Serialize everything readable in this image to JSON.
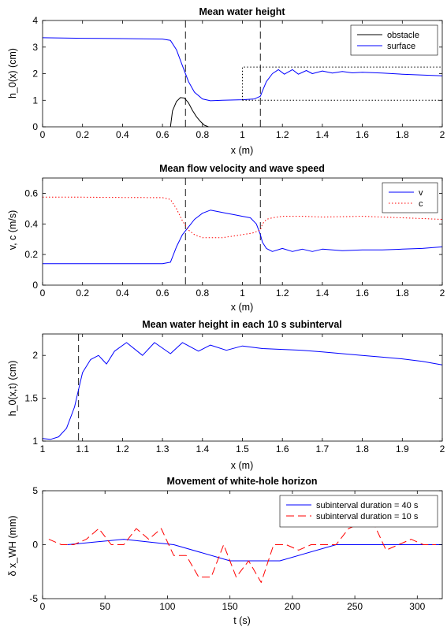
{
  "chart_data": [
    {
      "type": "line",
      "title": "Mean water height",
      "xlabel": "x (m)",
      "ylabel": "h_0(x) (cm)",
      "xlim": [
        0,
        2
      ],
      "ylim": [
        0,
        4
      ],
      "xticks": [
        "0",
        "0.2",
        "0.4",
        "0.6",
        "0.8",
        "1",
        "1.2",
        "1.4",
        "1.6",
        "1.8",
        "2"
      ],
      "yticks": [
        "0",
        "1",
        "2",
        "3",
        "4"
      ],
      "legend": "top-right",
      "vlines": [
        0.715,
        1.09
      ],
      "series": [
        {
          "name": "obstacle",
          "color": "#000000",
          "dash": "",
          "x": [
            0.64,
            0.65,
            0.67,
            0.69,
            0.71,
            0.73,
            0.75,
            0.77,
            0.79,
            0.81,
            0.83
          ],
          "y": [
            0,
            0.6,
            0.95,
            1.1,
            1.08,
            0.9,
            0.62,
            0.38,
            0.2,
            0.06,
            0
          ]
        },
        {
          "name": "surface",
          "color": "#0000ff",
          "dash": "",
          "x": [
            0,
            0.2,
            0.4,
            0.6,
            0.64,
            0.67,
            0.7,
            0.73,
            0.76,
            0.8,
            0.84,
            0.9,
            1.0,
            1.06,
            1.09,
            1.1,
            1.12,
            1.15,
            1.18,
            1.21,
            1.25,
            1.28,
            1.32,
            1.35,
            1.4,
            1.45,
            1.5,
            1.55,
            1.6,
            1.7,
            1.8,
            1.9,
            2.0
          ],
          "y": [
            3.35,
            3.33,
            3.32,
            3.3,
            3.25,
            2.9,
            2.3,
            1.7,
            1.3,
            1.05,
            0.98,
            1.0,
            1.02,
            1.05,
            1.15,
            1.35,
            1.7,
            2.0,
            2.15,
            1.98,
            2.15,
            1.98,
            2.12,
            2.0,
            2.1,
            2.02,
            2.08,
            2.03,
            2.05,
            2.02,
            1.98,
            1.95,
            1.92
          ]
        },
        {
          "name": "",
          "color": "#000000",
          "dash": "1.5,2.5",
          "x": [
            1.0,
            1.0,
            2.0
          ],
          "y": [
            1.0,
            2.25,
            2.25
          ]
        },
        {
          "name": "",
          "color": "#000000",
          "dash": "1.5,2.5",
          "x": [
            1.0,
            2.0
          ],
          "y": [
            1.0,
            1.0
          ]
        }
      ]
    },
    {
      "type": "line",
      "title": "Mean flow velocity and wave speed",
      "xlabel": "x (m)",
      "ylabel": "v, c (m/s)",
      "xlim": [
        0,
        2
      ],
      "ylim": [
        0,
        0.7
      ],
      "xticks": [
        "0",
        "0.2",
        "0.4",
        "0.6",
        "0.8",
        "1",
        "1.2",
        "1.4",
        "1.6",
        "1.8",
        "2"
      ],
      "yticks": [
        "0",
        "0.2",
        "0.4",
        "0.6"
      ],
      "legend": "top-right",
      "vlines": [
        0.715,
        1.09
      ],
      "series": [
        {
          "name": "v",
          "color": "#0000ff",
          "dash": "",
          "x": [
            0,
            0.2,
            0.4,
            0.6,
            0.64,
            0.67,
            0.7,
            0.73,
            0.76,
            0.8,
            0.84,
            0.88,
            0.92,
            0.96,
            1.0,
            1.04,
            1.07,
            1.09,
            1.1,
            1.12,
            1.15,
            1.2,
            1.25,
            1.3,
            1.35,
            1.4,
            1.5,
            1.6,
            1.7,
            1.8,
            1.9,
            2.0
          ],
          "y": [
            0.14,
            0.14,
            0.14,
            0.14,
            0.15,
            0.25,
            0.33,
            0.38,
            0.43,
            0.47,
            0.49,
            0.48,
            0.47,
            0.46,
            0.45,
            0.44,
            0.4,
            0.33,
            0.28,
            0.24,
            0.22,
            0.24,
            0.22,
            0.235,
            0.22,
            0.235,
            0.225,
            0.23,
            0.23,
            0.235,
            0.24,
            0.25
          ]
        },
        {
          "name": "c",
          "color": "#ff0000",
          "dash": "1.5,2.5",
          "x": [
            0,
            0.2,
            0.4,
            0.6,
            0.64,
            0.67,
            0.7,
            0.73,
            0.76,
            0.8,
            0.85,
            0.9,
            1.0,
            1.05,
            1.09,
            1.1,
            1.12,
            1.15,
            1.2,
            1.3,
            1.4,
            1.6,
            1.8,
            2.0
          ],
          "y": [
            0.575,
            0.575,
            0.573,
            0.572,
            0.56,
            0.5,
            0.42,
            0.36,
            0.33,
            0.31,
            0.31,
            0.31,
            0.33,
            0.34,
            0.36,
            0.4,
            0.43,
            0.44,
            0.45,
            0.45,
            0.445,
            0.45,
            0.44,
            0.43
          ]
        }
      ]
    },
    {
      "type": "line",
      "title": "Mean water height in each 10 s subinterval",
      "xlabel": "x (m)",
      "ylabel": "h_0(x,t) (cm)",
      "xlim": [
        1,
        2
      ],
      "ylim": [
        1,
        2.25
      ],
      "xticks": [
        "1",
        "1.1",
        "1.2",
        "1.3",
        "1.4",
        "1.5",
        "1.6",
        "1.7",
        "1.8",
        "1.9",
        "2"
      ],
      "yticks": [
        "1",
        "1.5",
        "2"
      ],
      "legend": "none",
      "vlines": [
        1.09
      ],
      "series": [
        {
          "name": "",
          "color": "#0000ff",
          "dash": "",
          "x": [
            1.0,
            1.02,
            1.04,
            1.06,
            1.08,
            1.09,
            1.1,
            1.12,
            1.14,
            1.16,
            1.18,
            1.21,
            1.25,
            1.28,
            1.32,
            1.35,
            1.39,
            1.42,
            1.46,
            1.5,
            1.55,
            1.6,
            1.65,
            1.7,
            1.75,
            1.8,
            1.85,
            1.9,
            1.95,
            2.0
          ],
          "y": [
            1.03,
            1.02,
            1.05,
            1.15,
            1.4,
            1.6,
            1.8,
            1.95,
            2.0,
            1.9,
            2.05,
            2.15,
            2.0,
            2.15,
            2.02,
            2.15,
            2.05,
            2.12,
            2.06,
            2.11,
            2.08,
            2.07,
            2.06,
            2.04,
            2.02,
            2.0,
            1.98,
            1.96,
            1.93,
            1.89
          ]
        }
      ]
    },
    {
      "type": "line",
      "title": "Movement of white-hole horizon",
      "xlabel": "t (s)",
      "ylabel": "δ x_WH (mm)",
      "xlim": [
        0,
        320
      ],
      "ylim": [
        -5,
        5
      ],
      "xticks": [
        "0",
        "50",
        "100",
        "150",
        "200",
        "250",
        "300"
      ],
      "yticks": [
        "-5",
        "0",
        "5"
      ],
      "legend": "top-right",
      "vlines": [],
      "series": [
        {
          "name": "subinterval duration = 40 s",
          "color": "#0000ff",
          "dash": "",
          "x": [
            20,
            65,
            105,
            150,
            190,
            235,
            275,
            320
          ],
          "y": [
            0,
            0.5,
            0,
            -1.5,
            -1.5,
            0,
            0,
            0
          ]
        },
        {
          "name": "subinterval duration = 10 s",
          "color": "#ff0000",
          "dash": "10,5",
          "x": [
            5,
            15,
            25,
            35,
            45,
            55,
            65,
            75,
            85,
            95,
            105,
            115,
            125,
            135,
            145,
            155,
            165,
            175,
            185,
            195,
            205,
            215,
            225,
            235,
            245,
            255,
            265,
            275,
            285,
            295,
            305,
            315
          ],
          "y": [
            0.5,
            0,
            0,
            0.5,
            1.5,
            0,
            0,
            1.5,
            0.5,
            1.5,
            -1,
            -1,
            -3,
            -3,
            0,
            -3,
            -1.5,
            -3.5,
            0,
            0,
            -0.5,
            0,
            0,
            0,
            1.5,
            2,
            2,
            -0.5,
            0,
            0.5,
            0,
            0
          ]
        }
      ]
    }
  ]
}
